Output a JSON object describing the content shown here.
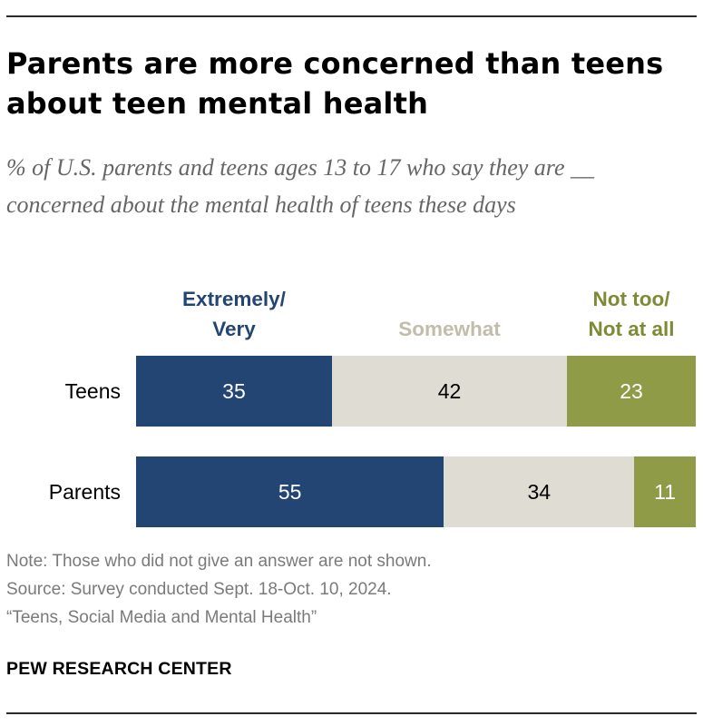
{
  "title": "Parents are more concerned than teens about teen mental health",
  "subtitle": "% of U.S. parents and teens ages 13 to 17 who say they are __ concerned about the mental health of teens these days",
  "legend": [
    {
      "label": "Extremely/\nVery",
      "color": "#224573"
    },
    {
      "label": "Somewhat",
      "color": "#c2bcab"
    },
    {
      "label": "Not too/\nNot at all",
      "color": "#7f8a35"
    }
  ],
  "chart_data": {
    "type": "bar",
    "orientation": "horizontal",
    "stacked": true,
    "categories": [
      "Teens",
      "Parents"
    ],
    "series": [
      {
        "name": "Extremely/Very",
        "values": [
          35,
          55
        ],
        "color": "#234574",
        "label_color": "#ffffff"
      },
      {
        "name": "Somewhat",
        "values": [
          42,
          34
        ],
        "color": "#dfdcd4",
        "label_color": "#000000"
      },
      {
        "name": "Not too/Not at all",
        "values": [
          23,
          11
        ],
        "color": "#909b47",
        "label_color": "#ffffff"
      }
    ],
    "xlim": [
      0,
      100
    ],
    "units": "%",
    "grid": false,
    "legend_position": "top"
  },
  "notes": {
    "note": "Note: Those who did not give an answer are not shown.",
    "source": "Source: Survey conducted Sept. 18-Oct. 10, 2024.",
    "report": "“Teens, Social Media and Mental Health”"
  },
  "brand": "PEW RESEARCH CENTER"
}
